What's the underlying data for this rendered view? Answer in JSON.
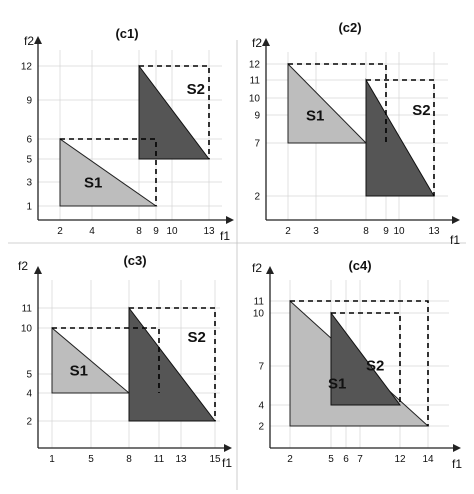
{
  "panels": [
    {
      "id": "c1",
      "title": "(c1)",
      "xlabel": "f1",
      "ylabel": "f2",
      "x_ticks": [
        2,
        4,
        8,
        9,
        10,
        13
      ],
      "y_ticks": [
        1,
        3,
        5,
        6,
        9,
        12
      ],
      "s1": {
        "label": "S1",
        "poly": [
          [
            2,
            1
          ],
          [
            2,
            6
          ],
          [
            9,
            1
          ]
        ]
      },
      "s2": {
        "label": "S2",
        "poly": [
          [
            8,
            12
          ],
          [
            13,
            5
          ],
          [
            8,
            5
          ]
        ]
      },
      "dashed": [
        [
          [
            2,
            6
          ],
          [
            9,
            6
          ],
          [
            9,
            1
          ]
        ],
        [
          [
            8,
            12
          ],
          [
            13,
            12
          ],
          [
            13,
            5
          ]
        ]
      ]
    },
    {
      "id": "c2",
      "title": "(c2)",
      "xlabel": "f1",
      "ylabel": "f2",
      "x_ticks": [
        2,
        3,
        8,
        9,
        10,
        13
      ],
      "y_ticks": [
        2,
        7,
        9,
        10,
        11,
        12
      ],
      "s1": {
        "label": "S1",
        "poly": [
          [
            2,
            7
          ],
          [
            2,
            12
          ],
          [
            8,
            7
          ]
        ]
      },
      "s2": {
        "label": "S2",
        "poly": [
          [
            8,
            11
          ],
          [
            13,
            2
          ],
          [
            8,
            2
          ]
        ]
      },
      "dashed": [
        [
          [
            2,
            12
          ],
          [
            9,
            12
          ],
          [
            9,
            7
          ]
        ],
        [
          [
            8,
            11
          ],
          [
            13,
            11
          ],
          [
            13,
            2
          ]
        ]
      ]
    },
    {
      "id": "c3",
      "title": "(c3)",
      "xlabel": "f1",
      "ylabel": "f2",
      "x_ticks": [
        1,
        5,
        8,
        11,
        13,
        15
      ],
      "y_ticks": [
        2,
        4,
        5,
        10,
        11
      ],
      "s1": {
        "label": "S1",
        "poly": [
          [
            1,
            4
          ],
          [
            1,
            10
          ],
          [
            8,
            4
          ]
        ]
      },
      "s2": {
        "label": "S2",
        "poly": [
          [
            8,
            11
          ],
          [
            15,
            2
          ],
          [
            8,
            2
          ]
        ]
      },
      "dashed": [
        [
          [
            1,
            10
          ],
          [
            11,
            10
          ],
          [
            11,
            4
          ]
        ],
        [
          [
            8,
            11
          ],
          [
            15,
            11
          ],
          [
            15,
            2
          ]
        ]
      ]
    },
    {
      "id": "c4",
      "title": "(c4)",
      "xlabel": "f1",
      "ylabel": "f2",
      "x_ticks": [
        2,
        5,
        6,
        7,
        12,
        14
      ],
      "y_ticks": [
        2,
        4,
        7,
        10,
        11
      ],
      "s1": {
        "label": "S1",
        "poly": [
          [
            2,
            2
          ],
          [
            2,
            11
          ],
          [
            14,
            2
          ]
        ]
      },
      "s2": {
        "label": "S2",
        "poly": [
          [
            5,
            4
          ],
          [
            5,
            10
          ],
          [
            12,
            4
          ]
        ]
      },
      "dashed": [
        [
          [
            2,
            11
          ],
          [
            14,
            11
          ],
          [
            14,
            2
          ]
        ],
        [
          [
            5,
            10
          ],
          [
            12,
            10
          ],
          [
            12,
            4
          ]
        ]
      ]
    }
  ]
}
